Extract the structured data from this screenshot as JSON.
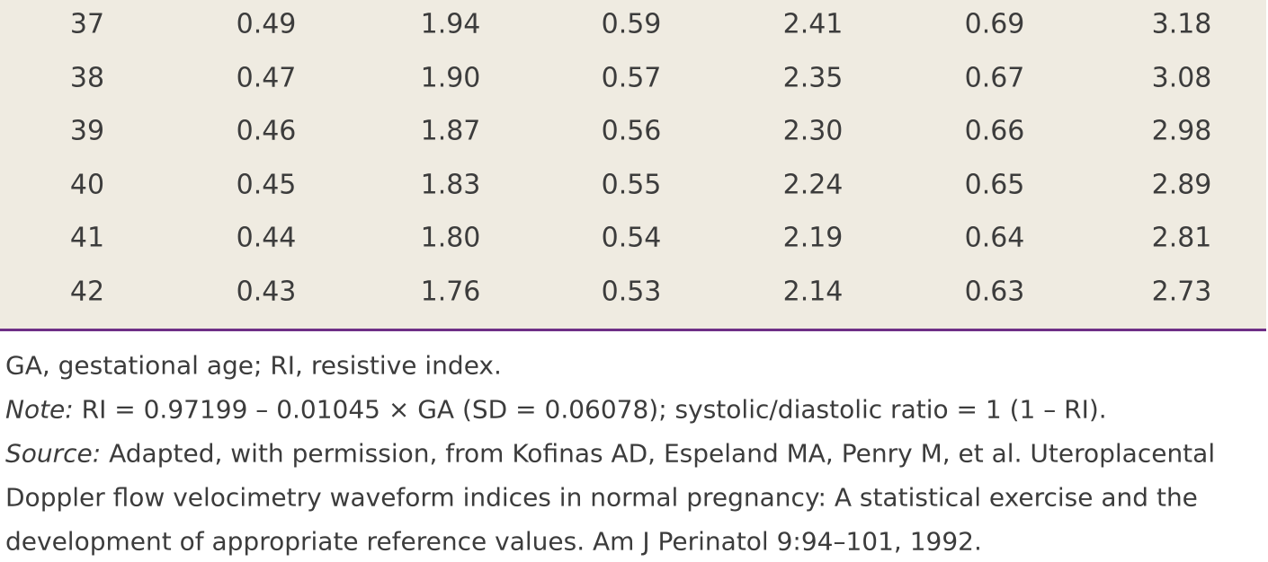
{
  "table": {
    "rows": [
      [
        "37",
        "0.49",
        "1.94",
        "0.59",
        "2.41",
        "0.69",
        "3.18"
      ],
      [
        "38",
        "0.47",
        "1.90",
        "0.57",
        "2.35",
        "0.67",
        "3.08"
      ],
      [
        "39",
        "0.46",
        "1.87",
        "0.56",
        "2.30",
        "0.66",
        "2.98"
      ],
      [
        "40",
        "0.45",
        "1.83",
        "0.55",
        "2.24",
        "0.65",
        "2.89"
      ],
      [
        "41",
        "0.44",
        "1.80",
        "0.54",
        "2.19",
        "0.64",
        "2.81"
      ],
      [
        "42",
        "0.43",
        "1.76",
        "0.53",
        "2.14",
        "0.63",
        "2.73"
      ]
    ]
  },
  "footnotes": {
    "abbreviations": "GA, gestational age; RI, resistive index.",
    "note_label": "Note:",
    "note": "RI = 0.97199 – 0.01045 × GA (SD = 0.06078); systolic/diastolic ratio = 1 (1 – RI).",
    "source_label": "Source:",
    "source_lines": [
      "Adapted, with permission, from Kofinas AD, Espeland MA, Penry M, et al. Uteroplacental",
      "Doppler flow velocimetry waveform indices in normal pregnancy: A statistical exercise and the",
      "development of appropriate reference values. Am J Perinatol 9:94–101, 1992."
    ]
  }
}
